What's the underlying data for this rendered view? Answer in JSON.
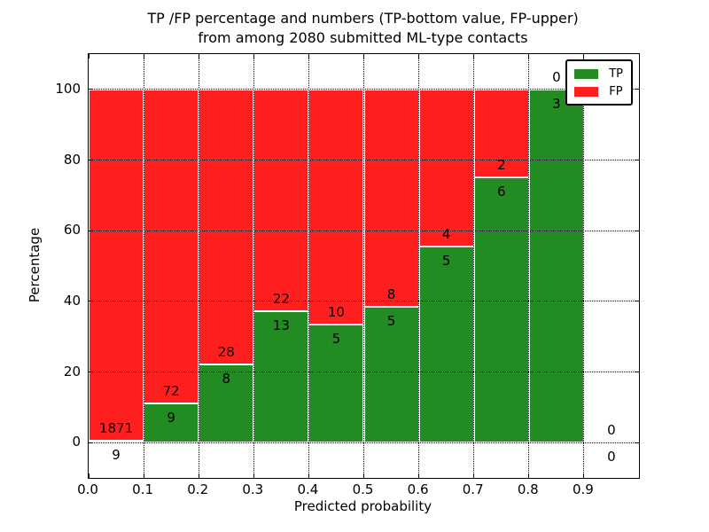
{
  "figure": {
    "title_line1": "TP /FP percentage and numbers (TP-bottom value, FP-upper)",
    "title_line2": "from among 2080 submitted ML-type contacts"
  },
  "chart_data": {
    "type": "bar",
    "stacked": true,
    "percent_normalized": true,
    "title": "TP /FP percentage and numbers (TP-bottom value, FP-upper) from among 2080 submitted ML-type contacts",
    "xlabel": "Predicted probability",
    "ylabel": "Percentage",
    "xlim": [
      0.0,
      1.0
    ],
    "ylim": [
      -10,
      110
    ],
    "grid": true,
    "grid_style": "dotted",
    "total_contacts": 2080,
    "bin_width": 0.1,
    "categories": [
      "0.0-0.1",
      "0.1-0.2",
      "0.2-0.3",
      "0.3-0.4",
      "0.4-0.5",
      "0.5-0.6",
      "0.6-0.7",
      "0.7-0.8",
      "0.8-0.9",
      "0.9-1.0"
    ],
    "x_tick_values": [
      0.0,
      0.1,
      0.2,
      0.3,
      0.4,
      0.5,
      0.6,
      0.7,
      0.8,
      0.9
    ],
    "x_tick_labels": [
      "0.0",
      "0.1",
      "0.2",
      "0.3",
      "0.4",
      "0.5",
      "0.6",
      "0.7",
      "0.8",
      "0.9"
    ],
    "y_tick_values": [
      0,
      20,
      40,
      60,
      80,
      100
    ],
    "y_tick_labels": [
      "0",
      "20",
      "40",
      "60",
      "80",
      "100"
    ],
    "series": [
      {
        "name": "TP",
        "color": "#228B22",
        "counts": [
          9,
          9,
          8,
          13,
          5,
          5,
          5,
          6,
          3,
          0
        ],
        "pct": [
          0.48,
          11.11,
          22.22,
          37.14,
          33.33,
          38.46,
          55.56,
          75.0,
          100.0,
          0.0
        ]
      },
      {
        "name": "FP",
        "color": "#FF1F1F",
        "counts": [
          1871,
          72,
          28,
          22,
          10,
          8,
          4,
          2,
          0,
          0
        ],
        "pct": [
          99.52,
          88.89,
          77.78,
          62.86,
          66.67,
          61.54,
          44.44,
          25.0,
          0.0,
          0.0
        ]
      }
    ],
    "legend": {
      "position": "upper right",
      "entries": [
        "TP",
        "FP"
      ]
    }
  }
}
